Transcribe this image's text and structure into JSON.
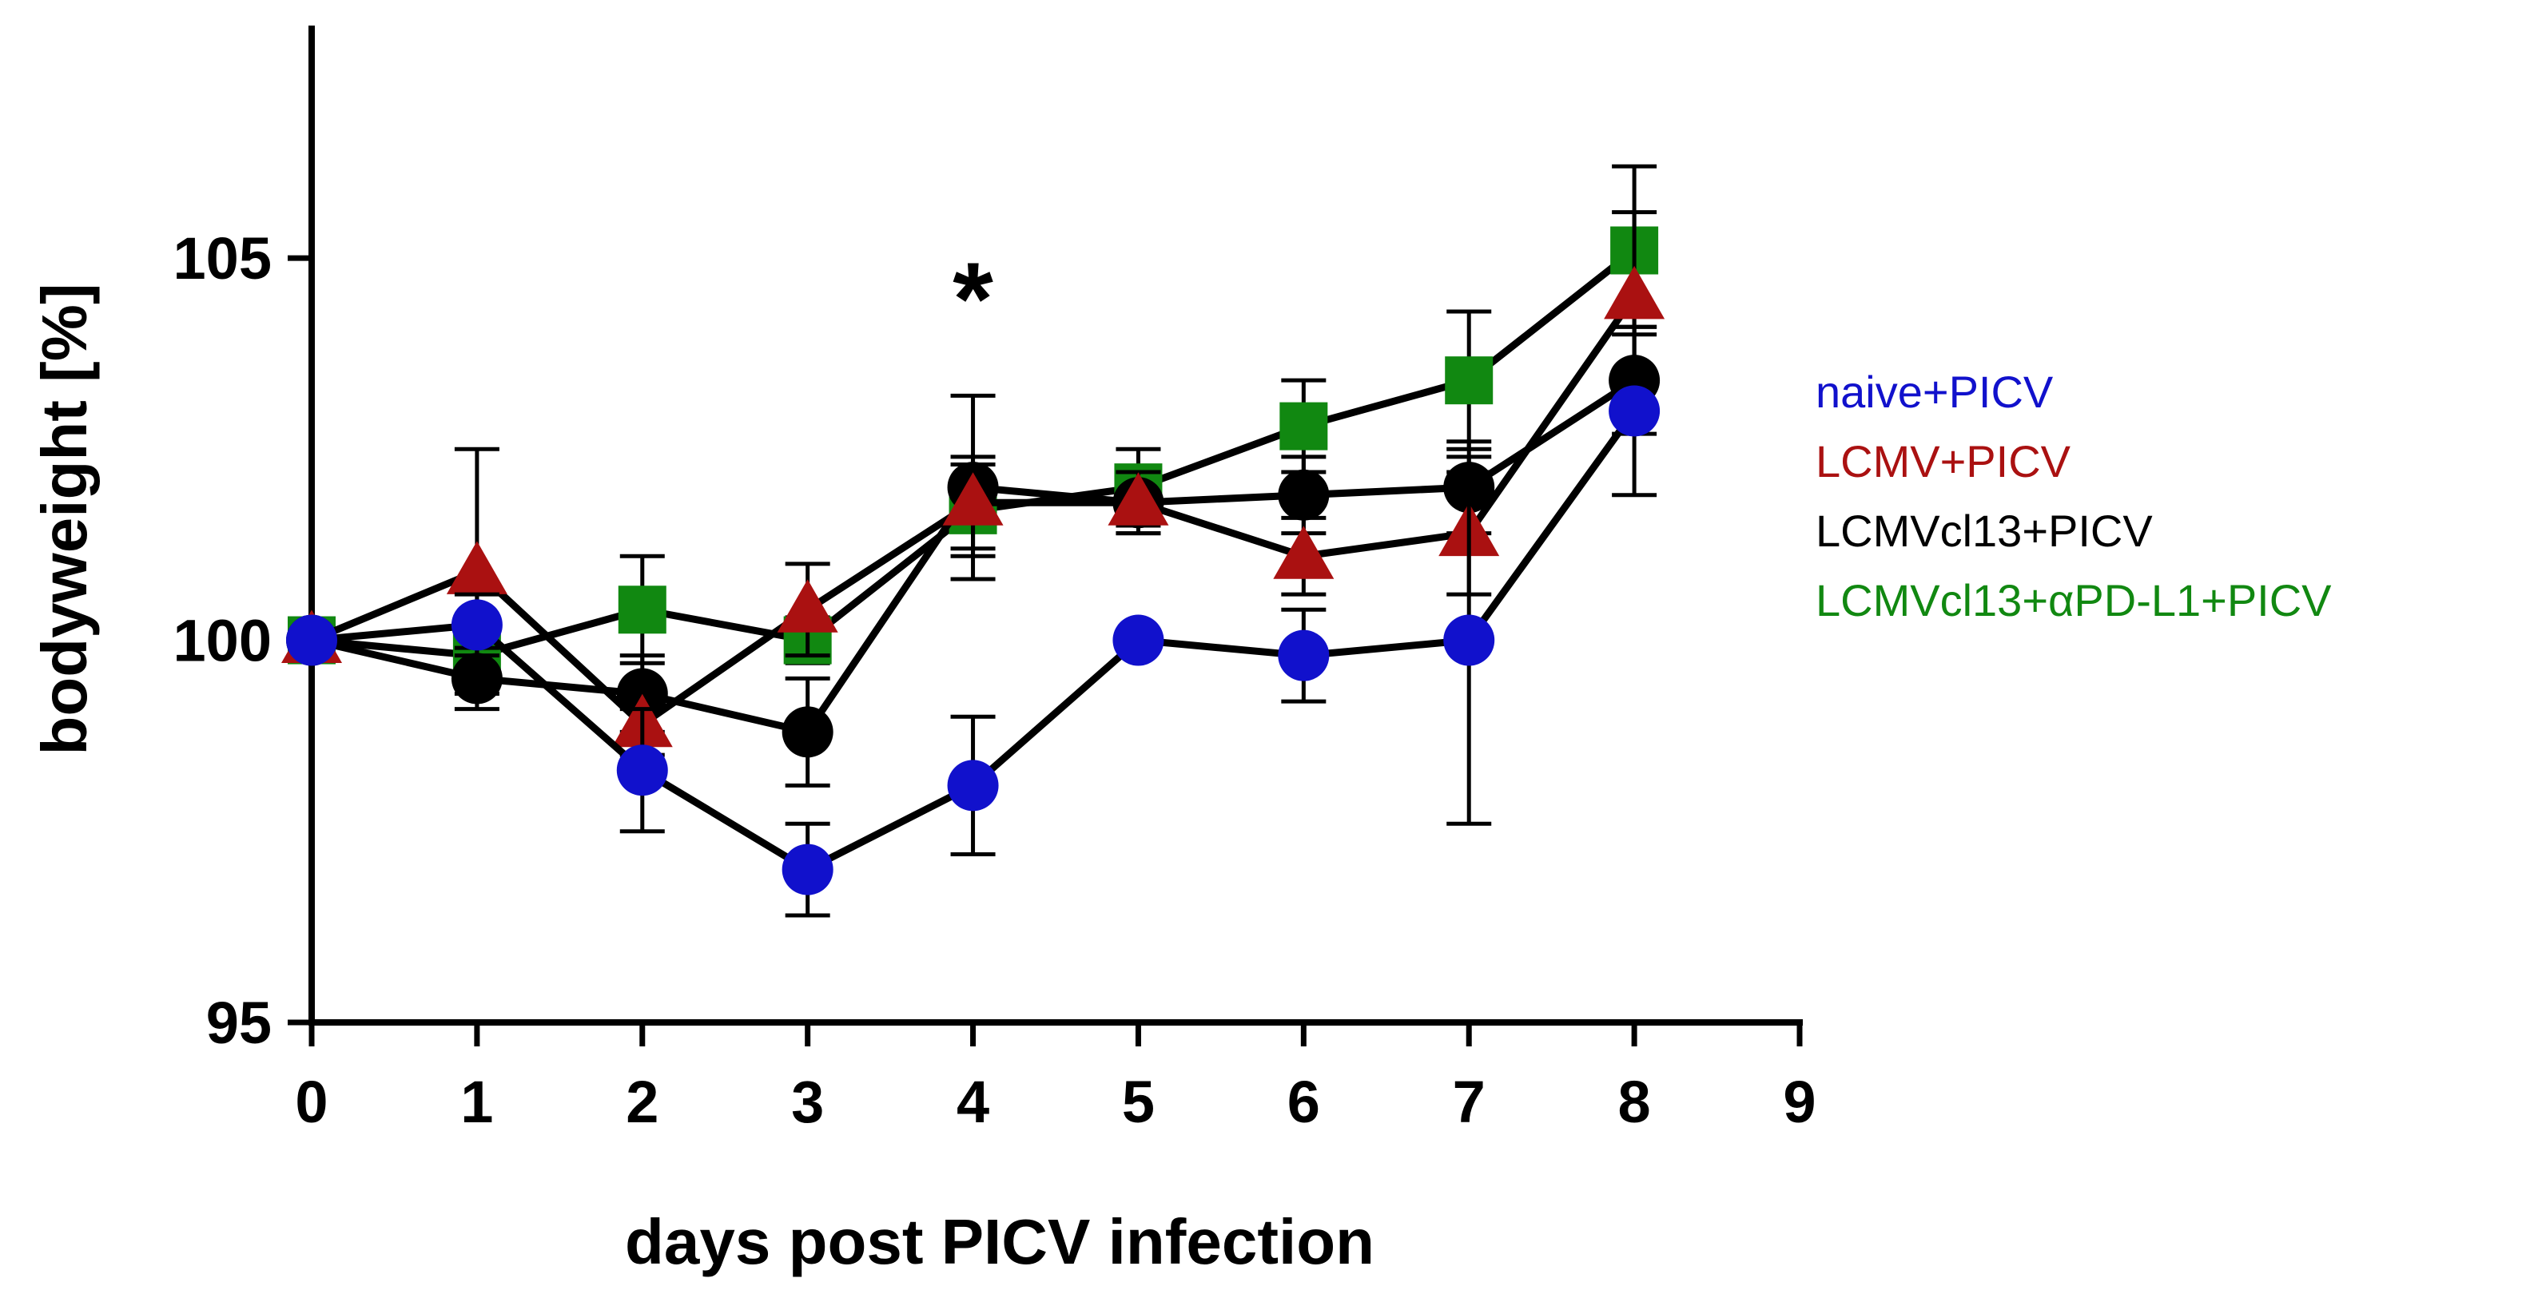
{
  "chart_data": {
    "type": "line",
    "title": "",
    "xlabel": "days post PICV infection",
    "ylabel": "bodyweight [%]",
    "xlim": [
      0,
      9
    ],
    "ylim": [
      95,
      108
    ],
    "xticks": [
      "0",
      "1",
      "2",
      "3",
      "4",
      "5",
      "6",
      "7",
      "8",
      "9"
    ],
    "yticks": [
      "95",
      "100",
      "105"
    ],
    "grid": false,
    "legend_position": "right",
    "annotations": [
      {
        "text": "*",
        "x": 4,
        "y": 104.5
      }
    ],
    "x": [
      0,
      1,
      2,
      3,
      4,
      5,
      6,
      7,
      8
    ],
    "series": [
      {
        "name": "LCMVcl13+αPD-L1+PICV",
        "color": "#118811",
        "marker": "square",
        "values": [
          100.0,
          99.8,
          100.4,
          100.0,
          101.7,
          102.0,
          102.8,
          103.4,
          105.1
        ],
        "errors": [
          0.1,
          0.3,
          0.7,
          0.3,
          0.6,
          0.5,
          0.6,
          0.9,
          1.1
        ]
      },
      {
        "name": "LCMVcl13+PICV",
        "color": "#000000",
        "marker": "circle",
        "values": [
          100.0,
          99.5,
          99.3,
          98.8,
          102.0,
          101.8,
          101.9,
          102.0,
          103.4
        ],
        "errors": [
          0.1,
          0.4,
          0.5,
          0.7,
          1.2,
          0.4,
          0.5,
          0.6,
          0.7
        ]
      },
      {
        "name": "LCMV+PICV",
        "color": "#aa1111",
        "marker": "triangle",
        "values": [
          100.0,
          100.9,
          98.9,
          100.4,
          101.8,
          101.8,
          101.1,
          101.4,
          104.5
        ],
        "errors": [
          0.1,
          1.6,
          0.4,
          0.6,
          0.6,
          0.4,
          0.5,
          0.8,
          1.1
        ]
      },
      {
        "name": "naive+PICV",
        "color": "#1111cc",
        "marker": "circle",
        "values": [
          100.0,
          100.2,
          98.3,
          97.0,
          98.1,
          100.0,
          99.8,
          100.0,
          103.0
        ],
        "errors": [
          0.1,
          0.4,
          0.8,
          0.6,
          0.9,
          0.1,
          0.6,
          2.4,
          1.1
        ]
      }
    ],
    "legend_order": [
      "naive+PICV",
      "LCMV+PICV",
      "LCMVcl13+PICV",
      "LCMVcl13+αPD-L1+PICV"
    ]
  }
}
